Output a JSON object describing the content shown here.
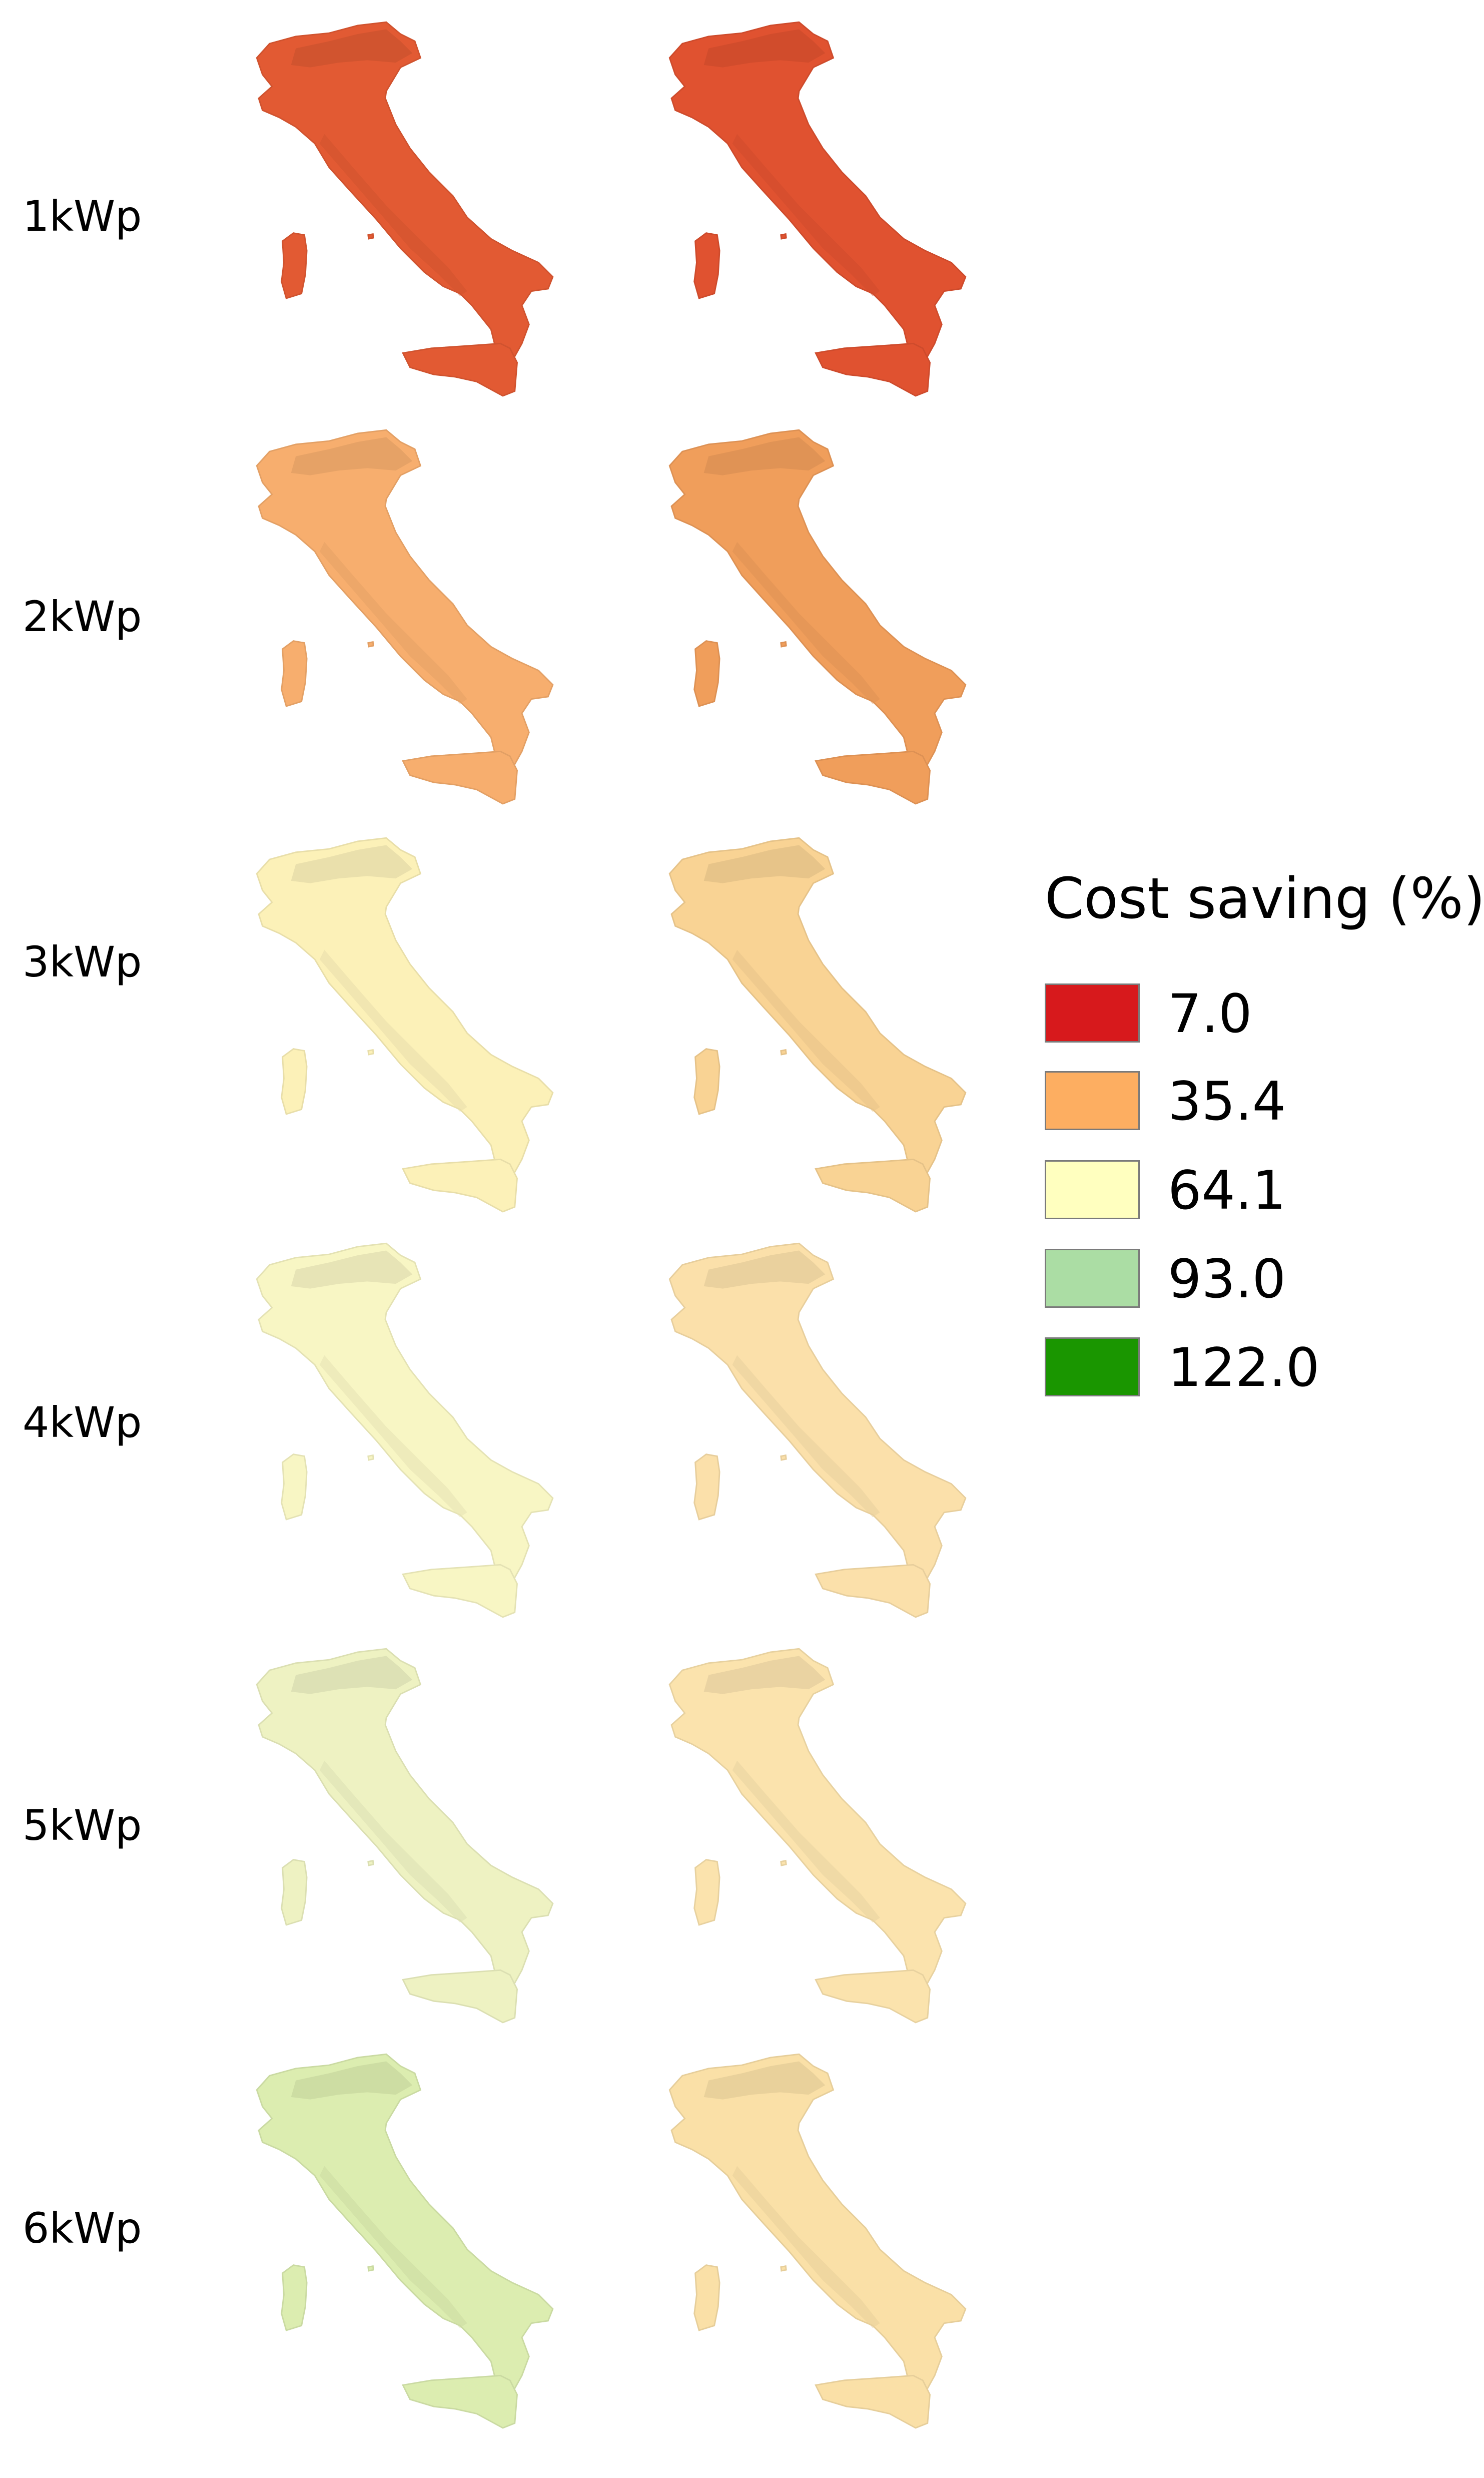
{
  "rows": [
    {
      "label": "1kWp",
      "maps": [
        {
          "fill": "#e25a33"
        },
        {
          "fill": "#e05230"
        }
      ]
    },
    {
      "label": "2kWp",
      "maps": [
        {
          "fill": "#f7ae6e"
        },
        {
          "fill": "#f09e5b"
        }
      ]
    },
    {
      "label": "3kWp",
      "maps": [
        {
          "fill": "#fcf1b8"
        },
        {
          "fill": "#f9d394"
        }
      ]
    },
    {
      "label": "4kWp",
      "maps": [
        {
          "fill": "#f8f6c4"
        },
        {
          "fill": "#fbe0aa"
        }
      ]
    },
    {
      "label": "5kWp",
      "maps": [
        {
          "fill": "#eef2c2"
        },
        {
          "fill": "#fbe3ad"
        }
      ]
    },
    {
      "label": "6kWp",
      "maps": [
        {
          "fill": "#dcedb0"
        },
        {
          "fill": "#fae0a7"
        }
      ]
    }
  ],
  "legend": {
    "title": "Cost saving (%)",
    "items": [
      {
        "value": "7.0",
        "color": "#d7191c"
      },
      {
        "value": "35.4",
        "color": "#fdae61"
      },
      {
        "value": "64.1",
        "color": "#ffffbf"
      },
      {
        "value": "93.0",
        "color": "#abdda4"
      },
      {
        "value": "122.0",
        "color": "#1a9600"
      }
    ]
  }
}
